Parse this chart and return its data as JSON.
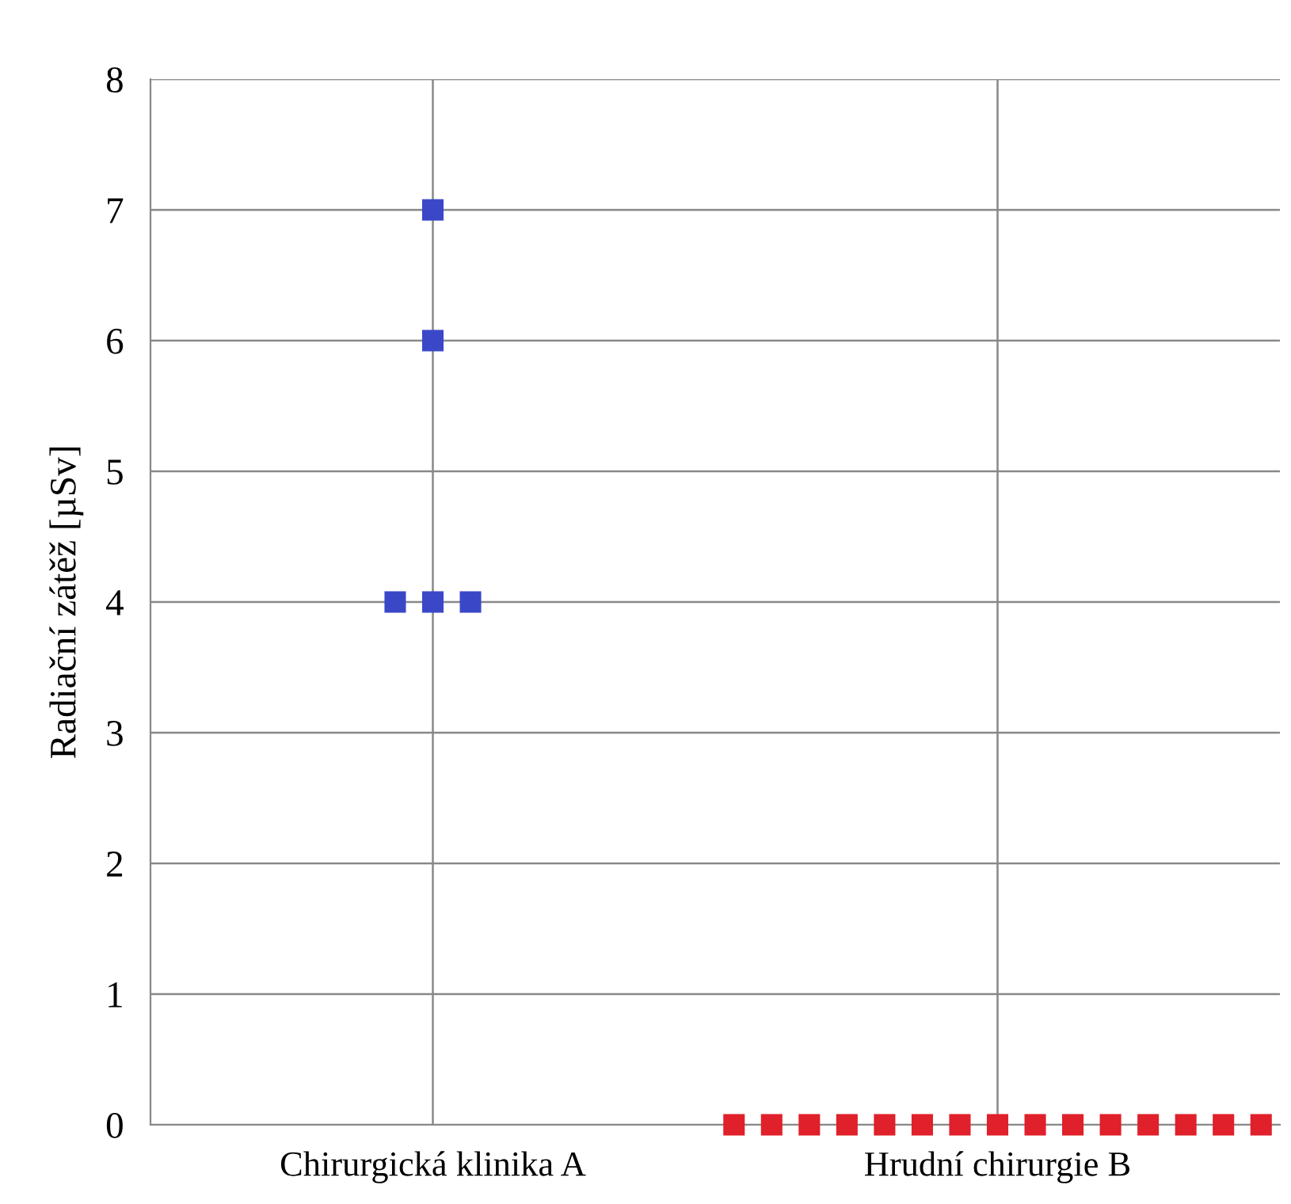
{
  "chart_data": {
    "type": "scatter",
    "ylabel": "Radiační zátěž [µSv]",
    "categories": [
      null,
      null,
      null,
      null,
      null,
      null,
      null,
      "Chirurgická klinika A",
      null,
      null,
      null,
      null,
      null,
      null,
      null,
      null,
      null,
      null,
      null,
      null,
      null,
      null,
      "Hrudní chirurgie B",
      null,
      null,
      null,
      null,
      null,
      null,
      null
    ],
    "ylim": [
      0,
      8
    ],
    "yticks": [
      0,
      1,
      2,
      3,
      4,
      5,
      6,
      7,
      8
    ],
    "grid": true,
    "marker": "square",
    "series": [
      {
        "color": "#3a48c8",
        "values": [
          null,
          null,
          null,
          null,
          null,
          null,
          null,
          7,
          null,
          null,
          null,
          null,
          null,
          null,
          null,
          null,
          null,
          null,
          null,
          null,
          null,
          null,
          null,
          null,
          null,
          null,
          null,
          null,
          null,
          null
        ]
      },
      {
        "color": "#3a48c8",
        "values": [
          null,
          null,
          null,
          null,
          null,
          null,
          null,
          6,
          null,
          null,
          null,
          null,
          null,
          null,
          null,
          null,
          null,
          null,
          null,
          null,
          null,
          null,
          null,
          null,
          null,
          null,
          null,
          null,
          null,
          null
        ]
      },
      {
        "color": "#3a48c8",
        "values": [
          null,
          null,
          null,
          null,
          null,
          null,
          4,
          4,
          4,
          null,
          null,
          null,
          null,
          null,
          null,
          null,
          null,
          null,
          null,
          null,
          null,
          null,
          null,
          null,
          null,
          null,
          null,
          null,
          null,
          null
        ]
      },
      {
        "color": "#e0202a",
        "values": [
          null,
          null,
          null,
          null,
          null,
          null,
          null,
          null,
          null,
          null,
          null,
          null,
          null,
          null,
          null,
          0,
          0,
          0,
          0,
          0,
          0,
          0,
          0,
          0,
          0,
          0,
          0,
          0,
          0,
          0
        ]
      }
    ]
  }
}
